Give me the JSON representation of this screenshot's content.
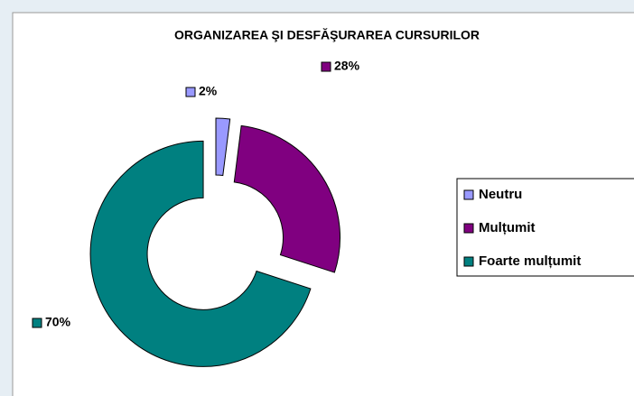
{
  "chart_data": {
    "type": "donut",
    "title": "ORGANIZAREA ŞI DESFĂŞURAREA CURSURILOR",
    "categories": [
      "Neutru",
      "Mulțumit",
      "Foarte mulțumit"
    ],
    "values": [
      2,
      28,
      70
    ],
    "value_labels": [
      "2%",
      "28%",
      "70%"
    ],
    "colors": [
      "#9999ff",
      "#800080",
      "#008080"
    ],
    "legend": "right"
  }
}
